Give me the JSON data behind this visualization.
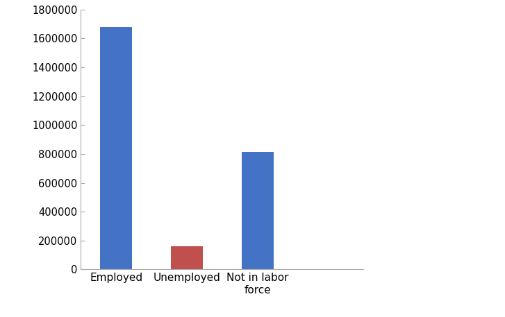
{
  "categories": [
    "Employed",
    "Unemployed",
    "Not in labor\nforce"
  ],
  "values": [
    1680000,
    160000,
    815000
  ],
  "bar_colors": [
    "#4472C4",
    "#C0504D",
    "#4472C4"
  ],
  "ylim": [
    0,
    1800000
  ],
  "yticks": [
    0,
    200000,
    400000,
    600000,
    800000,
    1000000,
    1200000,
    1400000,
    1600000,
    1800000
  ],
  "background_color": "#ffffff",
  "bar_width": 0.45,
  "bar_positions": [
    0,
    1,
    2
  ],
  "xlim": [
    -0.5,
    3.5
  ],
  "spine_color": "#aaaaaa",
  "tick_color": "#aaaaaa",
  "label_fontsize": 11,
  "ytick_fontsize": 10.5
}
